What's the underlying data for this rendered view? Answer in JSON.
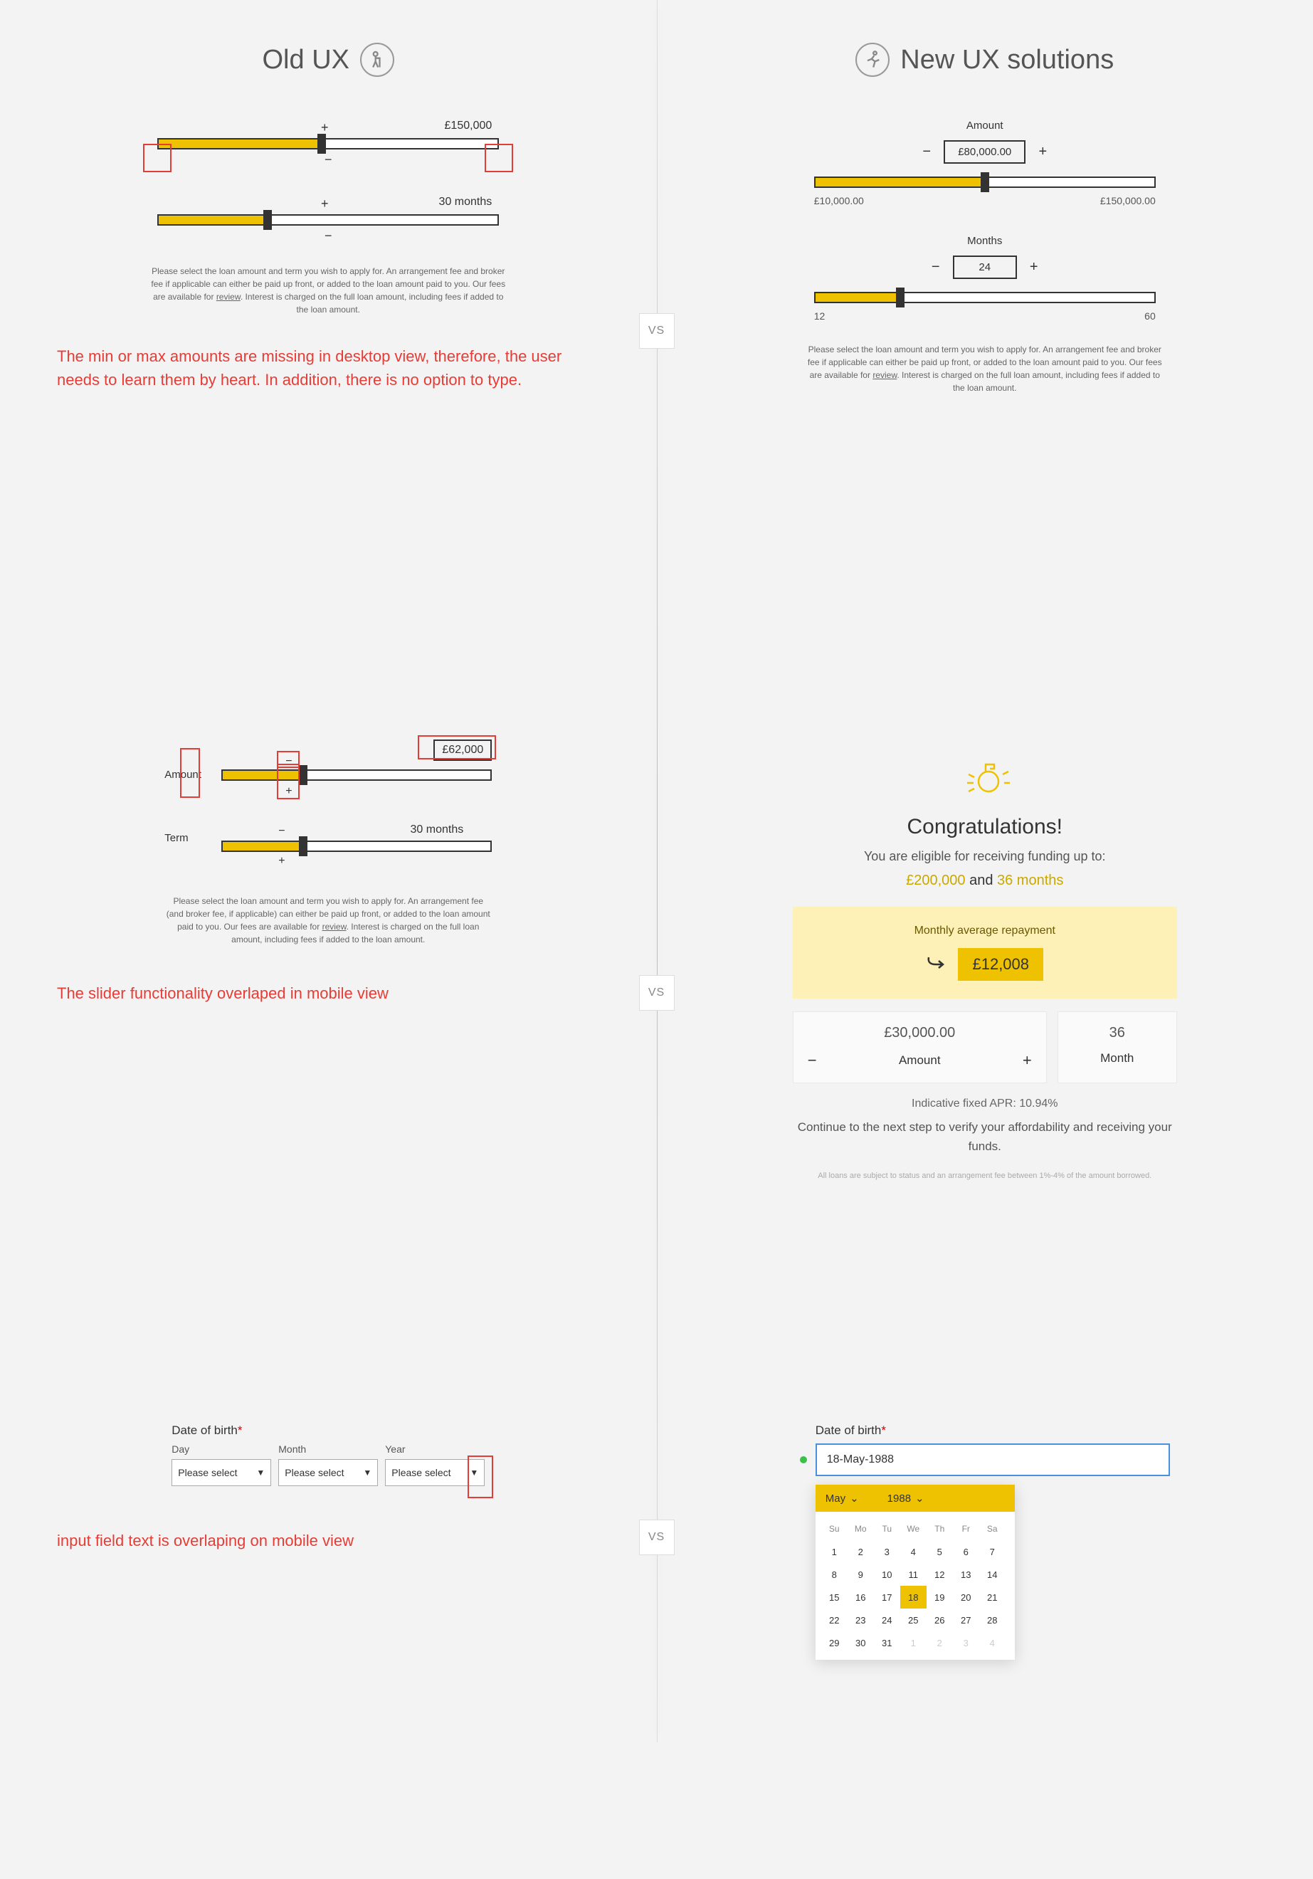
{
  "headings": {
    "old": "Old UX",
    "new": "New UX solutions",
    "vs": "VS"
  },
  "colors": {
    "yellow": "#eec200",
    "yellow_light": "#fdf1b8",
    "red": "#e73c35",
    "green": "#3bc14a",
    "blue": "#4a90e2",
    "bg": "#f3f3f3"
  },
  "sec1": {
    "old": {
      "amount": {
        "value": "£150,000",
        "fill_pct": 48
      },
      "term": {
        "value": "30 months",
        "fill_pct": 32
      },
      "plus": "+",
      "minus": "−",
      "fine": "Please select the loan amount and term you wish to apply for. An arrangement fee and broker fee if applicable can either be paid up front, or added to the loan amount paid to you. Our fees are available for",
      "fine_link": "review",
      "fine2": ". Interest is charged on the full loan amount, including fees if added to the loan amount.",
      "critique": "The min or max amounts are missing in desktop view, therefore, the user needs to learn them by heart. In addition, there is no option to type."
    },
    "new": {
      "amount": {
        "label": "Amount",
        "value": "£80,000.00",
        "min": "£10,000.00",
        "max": "£150,000.00",
        "fill_pct": 50
      },
      "months": {
        "label": "Months",
        "value": "24",
        "min": "12",
        "max": "60",
        "fill_pct": 25
      },
      "plus": "+",
      "minus": "−",
      "fine": "Please select the loan amount and term you wish to apply for. An arrangement fee and broker fee if applicable can either be paid up front, or added to the loan amount paid to you. Our fees are available for",
      "fine_link": "review",
      "fine2": ". Interest is charged on the full loan amount, including fees if added to the loan amount."
    }
  },
  "sec2": {
    "old": {
      "amount_label": "Amount",
      "amount_value": "£62,000",
      "amount_fill_pct": 30,
      "term_label": "Term",
      "term_value": "30 months",
      "term_fill_pct": 30,
      "plus": "+",
      "minus": "−",
      "fine": "Please select the loan amount and term you wish to apply for. An arrangement fee (and broker fee, if applicable) can either be paid up front, or added to the loan amount paid to you. Our fees are available for",
      "fine_link": "review",
      "fine2": ". Interest is charged on the full loan amount, including fees if added to the loan amount.",
      "critique": "The slider functionality overlaped in mobile view"
    },
    "new": {
      "title": "Congratulations!",
      "eligible": "You are eligible for receiving funding up to:",
      "max_amount": "£200,000",
      "and": " and ",
      "max_term": "36 months",
      "repay_label": "Monthly average repayment",
      "repay_value": "£12,008",
      "amount_value": "£30,000.00",
      "amount_label": "Amount",
      "term_value": "36",
      "term_label": "Month",
      "plus": "+",
      "minus": "−",
      "apr": "Indicative fixed APR: 10.94%",
      "continue": "Continue to the next step to verify your affordability and receiving your funds.",
      "tiny": "All loans are subject to status and an arrangement fee between 1%-4% of the amount borrowed."
    }
  },
  "sec3": {
    "old": {
      "label": "Date of birth",
      "ast": "*",
      "day": "Day",
      "month": "Month",
      "year": "Year",
      "placeholder": "Please select",
      "critique": "input field text is overlaping on mobile view"
    },
    "new": {
      "label": "Date of birth",
      "ast": "*",
      "value": "18-May-1988",
      "month_sel": "May",
      "year_sel": "1988",
      "dow": [
        "Su",
        "Mo",
        "Tu",
        "We",
        "Th",
        "Fr",
        "Sa"
      ],
      "weeks": [
        [
          {
            "d": "1"
          },
          {
            "d": "2"
          },
          {
            "d": "3"
          },
          {
            "d": "4"
          },
          {
            "d": "5"
          },
          {
            "d": "6"
          },
          {
            "d": "7"
          }
        ],
        [
          {
            "d": "8"
          },
          {
            "d": "9"
          },
          {
            "d": "10"
          },
          {
            "d": "11"
          },
          {
            "d": "12"
          },
          {
            "d": "13"
          },
          {
            "d": "14"
          }
        ],
        [
          {
            "d": "15"
          },
          {
            "d": "16"
          },
          {
            "d": "17"
          },
          {
            "d": "18",
            "sel": true
          },
          {
            "d": "19"
          },
          {
            "d": "20"
          },
          {
            "d": "21"
          }
        ],
        [
          {
            "d": "22"
          },
          {
            "d": "23"
          },
          {
            "d": "24"
          },
          {
            "d": "25"
          },
          {
            "d": "26"
          },
          {
            "d": "27"
          },
          {
            "d": "28"
          }
        ],
        [
          {
            "d": "29"
          },
          {
            "d": "30"
          },
          {
            "d": "31"
          },
          {
            "d": "1",
            "out": true
          },
          {
            "d": "2",
            "out": true
          },
          {
            "d": "3",
            "out": true
          },
          {
            "d": "4",
            "out": true
          }
        ]
      ]
    }
  }
}
